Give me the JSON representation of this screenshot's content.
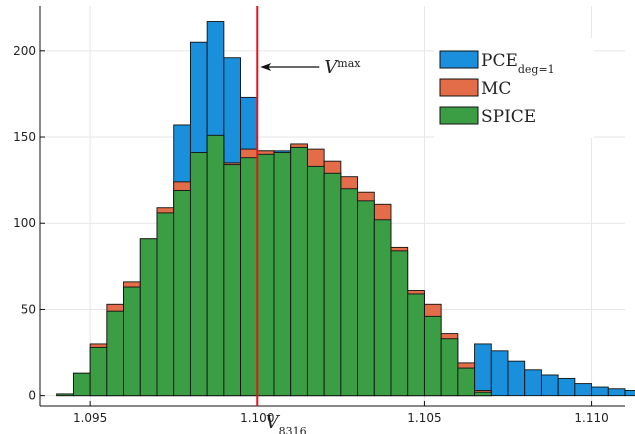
{
  "chart_data": {
    "type": "bar",
    "subtype": "overlaid-histogram",
    "title": "",
    "xlabel": "V",
    "xlabel_subscript": "8316",
    "ylabel": "",
    "xlim": [
      1.0935,
      1.111
    ],
    "ylim": [
      -6,
      226
    ],
    "x_ticks": [
      1.095,
      1.1,
      1.105,
      1.11
    ],
    "x_tick_labels": [
      "1.095",
      "1.100",
      "1.105",
      "1.110"
    ],
    "y_ticks": [
      0,
      50,
      100,
      150,
      200
    ],
    "y_tick_labels": [
      "0",
      "50",
      "100",
      "150",
      "200"
    ],
    "grid": true,
    "legend_position": "top-right",
    "bin_start": 1.094,
    "bin_width": 0.0005,
    "series": [
      {
        "name": "PCE",
        "name_subscript": "deg=1",
        "color": "#1a8fdc",
        "values": [
          0,
          0,
          4,
          10,
          17,
          36,
          63,
          157,
          205,
          217,
          196,
          173,
          142,
          142,
          145,
          125,
          110,
          90,
          72,
          57,
          43,
          36,
          25,
          14,
          6,
          30,
          26,
          20,
          15,
          12,
          10,
          7,
          5,
          4,
          3,
          2,
          1
        ]
      },
      {
        "name": "MC",
        "color": "#e46d49",
        "values": [
          1,
          13,
          30,
          53,
          66,
          91,
          109,
          124,
          137,
          144,
          135,
          143,
          142,
          137,
          146,
          143,
          136,
          127,
          118,
          111,
          86,
          61,
          53,
          36,
          19,
          3,
          0,
          0,
          0,
          0,
          0,
          0,
          0,
          0,
          0,
          0,
          0
        ]
      },
      {
        "name": "SPICE",
        "name_style": "small-caps",
        "color": "#3b9e45",
        "values": [
          1,
          13,
          28,
          49,
          63,
          91,
          106,
          119,
          141,
          151,
          134,
          138,
          140,
          141,
          144,
          133,
          129,
          120,
          113,
          102,
          84,
          59,
          46,
          33,
          16,
          2,
          0,
          0,
          0,
          0,
          0,
          0,
          0,
          0,
          0,
          0,
          0
        ]
      }
    ],
    "reference_line": {
      "x": 1.1,
      "color": "#e8111c",
      "label": "V",
      "label_superscript": "max"
    }
  }
}
